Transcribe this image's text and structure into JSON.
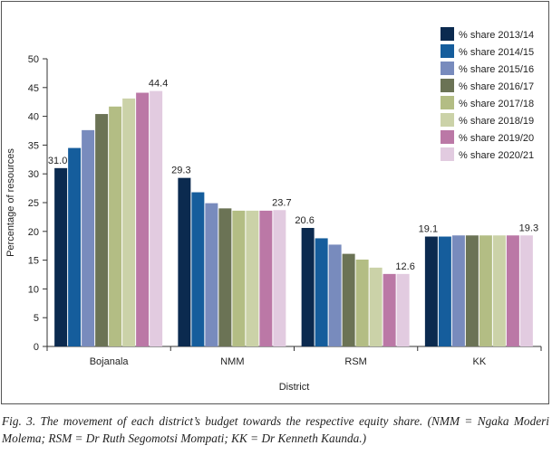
{
  "chart_data": {
    "type": "bar",
    "categories": [
      "Bojanala",
      "NMM",
      "RSM",
      "KK"
    ],
    "xlabel": "District",
    "ylabel": "Percentage of resources",
    "ylim": [
      0,
      50
    ],
    "yticks": [
      0,
      5,
      10,
      15,
      20,
      25,
      30,
      35,
      40,
      45,
      50
    ],
    "grid": false,
    "legend_position": "top-right",
    "series": [
      {
        "name": "% share 2013/14",
        "color": "#0b2a4f",
        "values": [
          31.0,
          29.3,
          20.6,
          19.1
        ]
      },
      {
        "name": "% share 2014/15",
        "color": "#155d9c",
        "values": [
          34.5,
          26.8,
          18.8,
          19.1
        ]
      },
      {
        "name": "% share 2015/16",
        "color": "#788bbd",
        "values": [
          37.6,
          24.9,
          17.7,
          19.3
        ]
      },
      {
        "name": "% share 2016/17",
        "color": "#6b7355",
        "values": [
          40.4,
          24.0,
          16.1,
          19.3
        ]
      },
      {
        "name": "% share 2017/18",
        "color": "#b3bd84",
        "values": [
          41.7,
          23.6,
          15.1,
          19.3
        ]
      },
      {
        "name": "% share 2018/19",
        "color": "#cbd2a8",
        "values": [
          43.1,
          23.6,
          13.7,
          19.3
        ]
      },
      {
        "name": "% share 2019/20",
        "color": "#bb78a6",
        "values": [
          44.1,
          23.6,
          12.6,
          19.3
        ]
      },
      {
        "name": "% share 2020/21",
        "color": "#e2cbe0",
        "values": [
          44.4,
          23.7,
          12.6,
          19.3
        ]
      }
    ],
    "data_labels": [
      {
        "category": "Bojanala",
        "series": 0,
        "text": "31.0"
      },
      {
        "category": "Bojanala",
        "series": 7,
        "text": "44.4"
      },
      {
        "category": "NMM",
        "series": 0,
        "text": "29.3"
      },
      {
        "category": "NMM",
        "series": 7,
        "text": "23.7"
      },
      {
        "category": "RSM",
        "series": 0,
        "text": "20.6"
      },
      {
        "category": "RSM",
        "series": 7,
        "text": "12.6"
      },
      {
        "category": "KK",
        "series": 0,
        "text": "19.1"
      },
      {
        "category": "KK",
        "series": 7,
        "text": "19.3"
      }
    ]
  },
  "caption": "Fig. 3. The movement of each district’s budget towards the respective equity share. (NMM = Ngaka Moderi Molema; RSM = Dr Ruth Segomotsi Mompati; KK = Dr Kenneth Kaunda.)"
}
